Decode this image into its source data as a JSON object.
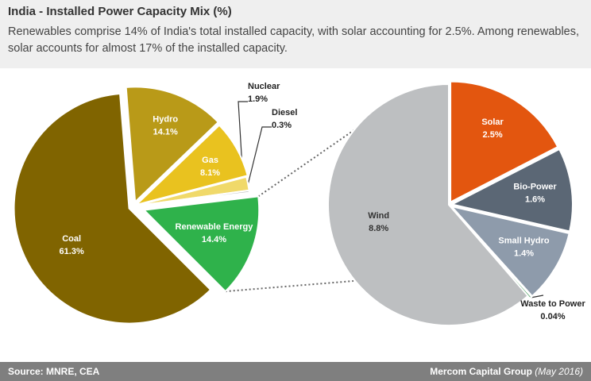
{
  "header": {
    "title": "India - Installed Power Capacity Mix (%)",
    "subtitle": "Renewables comprise 14% of India's total installed capacity, with solar accounting for 2.5%. Among renewables, solar accounts for almost 17% of the installed capacity."
  },
  "footer": {
    "source": "Source: MNRE, CEA",
    "credit": "Mercom Capital Group",
    "date": "(May 2016)"
  },
  "colors": {
    "coal": "#806400",
    "hydro": "#b99a18",
    "gas": "#e9c21f",
    "nuclear": "#f0d96a",
    "diesel": "#bfbfbf",
    "renewable": "#2fb24b",
    "wind": "#bdbfc1",
    "solar": "#e3560f",
    "bio_power": "#5b6775",
    "small_hydro": "#8e9bab",
    "waste_to_power": "#1f8a3a"
  },
  "chart_data": [
    {
      "type": "pie",
      "slices": [
        {
          "key": "coal",
          "name": "Coal",
          "value": 61.3,
          "label": "61.3%"
        },
        {
          "key": "hydro",
          "name": "Hydro",
          "value": 14.1,
          "label": "14.1%"
        },
        {
          "key": "gas",
          "name": "Gas",
          "value": 8.1,
          "label": "8.1%"
        },
        {
          "key": "nuclear",
          "name": "Nuclear",
          "value": 1.9,
          "label": "1.9%"
        },
        {
          "key": "diesel",
          "name": "Diesel",
          "value": 0.3,
          "label": "0.3%"
        },
        {
          "key": "renewable",
          "name": "Renewable Energy",
          "value": 14.4,
          "label": "14.4%"
        }
      ]
    },
    {
      "type": "pie",
      "slices": [
        {
          "key": "solar",
          "name": "Solar",
          "value": 2.5,
          "label": "2.5%"
        },
        {
          "key": "bio_power",
          "name": "Bio-Power",
          "value": 1.6,
          "label": "1.6%"
        },
        {
          "key": "small_hydro",
          "name": "Small Hydro",
          "value": 1.4,
          "label": "1.4%"
        },
        {
          "key": "waste_to_power",
          "name": "Waste to Power",
          "value": 0.04,
          "label": "0.04%"
        },
        {
          "key": "wind",
          "name": "Wind",
          "value": 8.8,
          "label": "8.8%"
        }
      ]
    }
  ]
}
